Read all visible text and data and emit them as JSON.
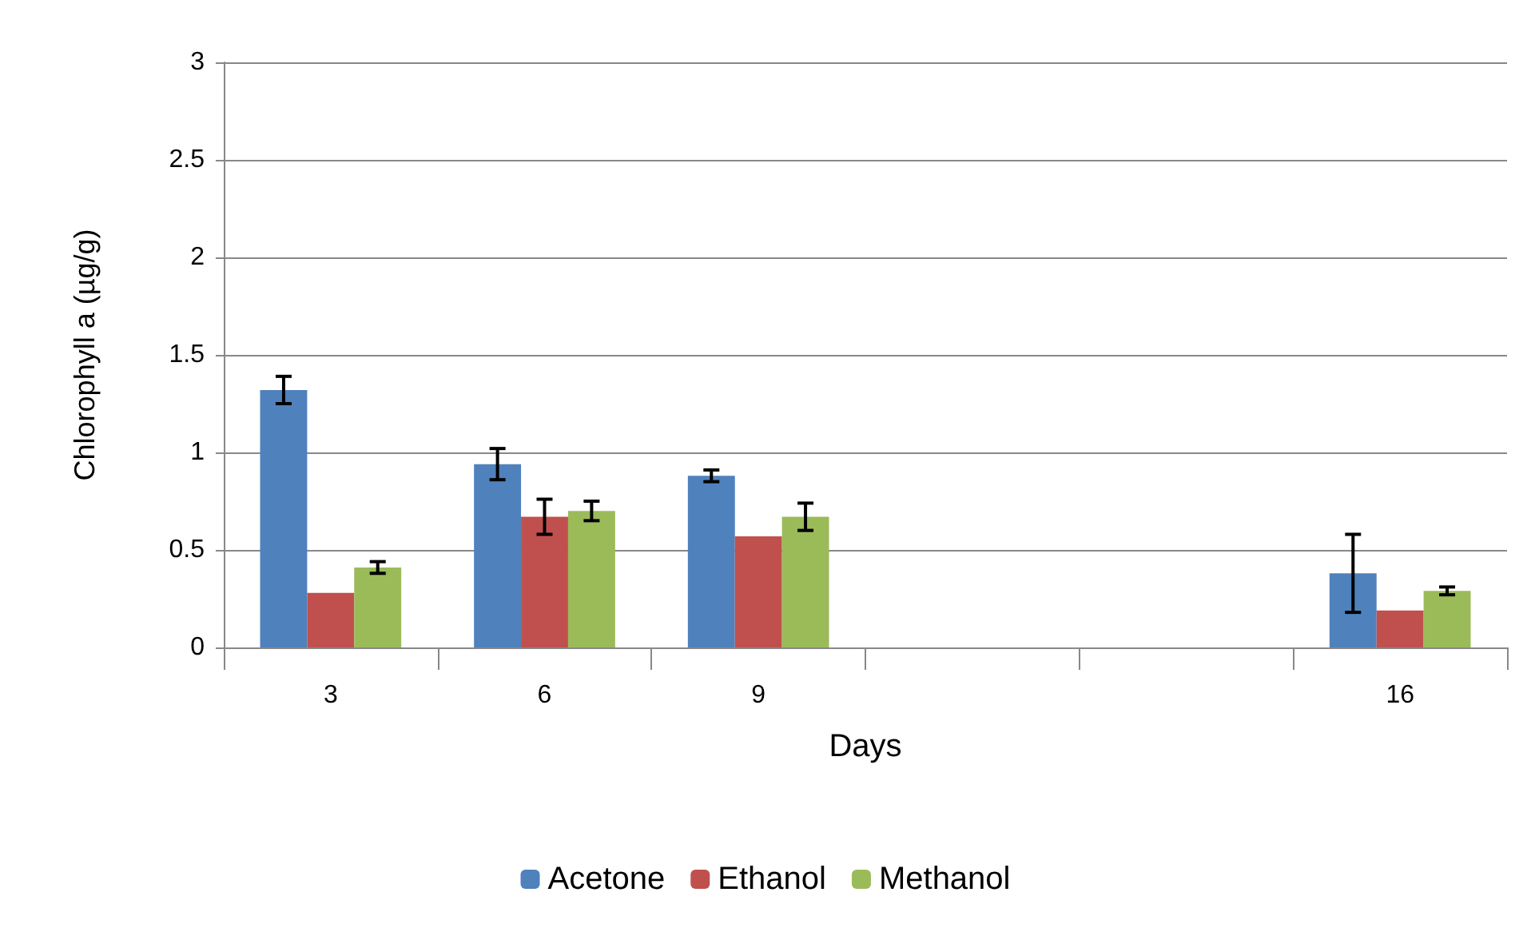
{
  "chart_data": {
    "type": "bar",
    "xlabel": "Days",
    "ylabel": "Chlorophyll a (µg/g)",
    "categories": [
      "3",
      "6",
      "9",
      null,
      null,
      "16"
    ],
    "series": [
      {
        "name": "Acetone",
        "color": "#4f81bd",
        "values": [
          1.32,
          0.94,
          0.88,
          null,
          null,
          0.38
        ],
        "errors": [
          0.07,
          0.08,
          0.03,
          null,
          null,
          0.2
        ]
      },
      {
        "name": "Ethanol",
        "color": "#c0504d",
        "values": [
          0.28,
          0.67,
          0.57,
          null,
          null,
          0.19
        ],
        "errors": [
          null,
          0.09,
          null,
          null,
          null,
          null
        ]
      },
      {
        "name": "Methanol",
        "color": "#9bbb59",
        "values": [
          0.41,
          0.7,
          0.67,
          null,
          null,
          0.29
        ],
        "errors": [
          0.03,
          0.05,
          0.07,
          null,
          null,
          0.02
        ]
      }
    ],
    "ylim": [
      0,
      3
    ],
    "yticks": [
      0,
      0.5,
      1,
      1.5,
      2,
      2.5,
      3
    ],
    "grid": "y",
    "legend": "bottom"
  }
}
